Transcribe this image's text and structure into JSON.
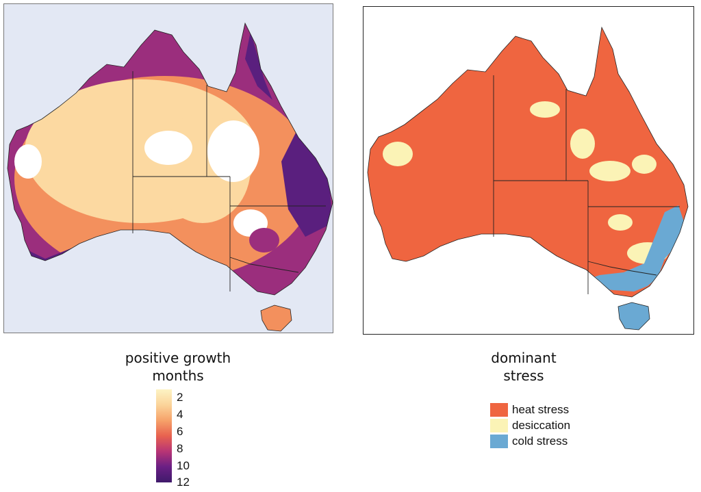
{
  "maps": [
    {
      "name": "positive growth months",
      "fills": {
        "ocean": "#e3e8f4",
        "interior": "#fcd9a1",
        "middle": "#f3905d",
        "edge": "#9b2e7d",
        "wet": "#5a1f7e",
        "patch": "#ffffff"
      }
    },
    {
      "name": "dominant stress",
      "fills": {
        "background": "#ffffff",
        "heat": "#ef6540",
        "desiccation": "#fbf3b6",
        "cold": "#6aa9d3"
      }
    }
  ],
  "legend_growth": {
    "title_line1": "positive growth",
    "title_line2": "months",
    "ticks": [
      "2",
      "4",
      "6",
      "8",
      "10",
      "12"
    ],
    "colors": [
      "#fdf3c4",
      "#fbd49a",
      "#f6a26a",
      "#e8624f",
      "#b83575",
      "#6a1f84",
      "#3f1a6b"
    ]
  },
  "legend_stress": {
    "title_line1": "dominant",
    "title_line2": "stress",
    "categories": [
      {
        "label": "heat stress",
        "color": "#ef6540"
      },
      {
        "label": "desiccation",
        "color": "#fbf3b6"
      },
      {
        "label": "cold stress",
        "color": "#6aa9d3"
      }
    ]
  }
}
